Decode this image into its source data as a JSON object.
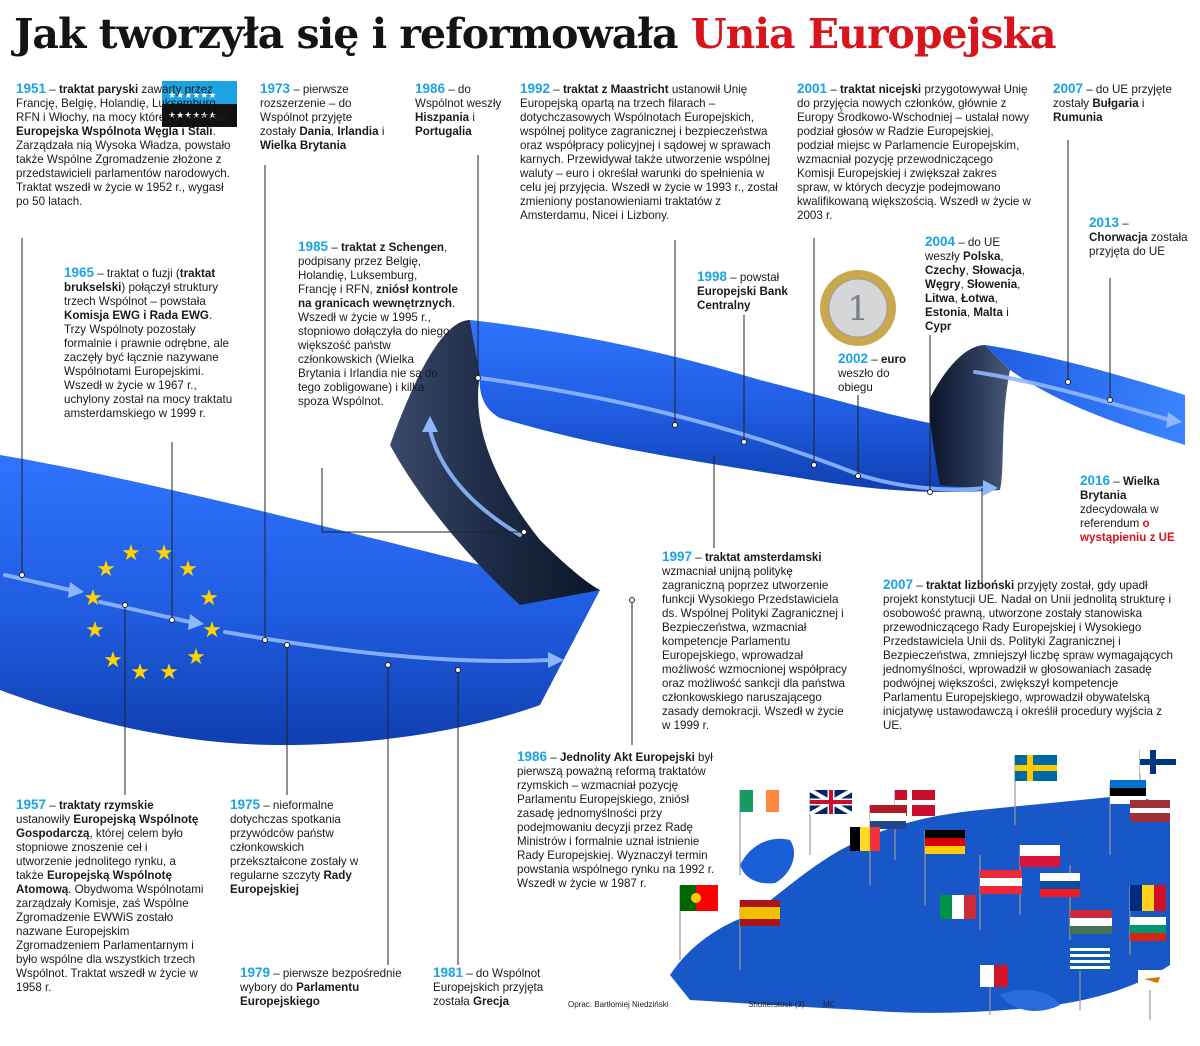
{
  "header": {
    "title_main": "Jak tworzyła się i reformowała",
    "title_accent": "Unia Europejska"
  },
  "events": {
    "e1951": {
      "year": "1951",
      "t1": " – ",
      "b1": "traktat paryski",
      "t2": " zawarty przez Francję, Belgię, Holandię, Luksemburg, RFN i Włochy, na mocy którego powstała ",
      "b2": "Europejska Wspólnota Węgla i Stali",
      "t3": ". Zarządzała nią Wysoka Władza, powstało także Wspólne Zgromadzenie złożone z przedstawicieli parlamentów narodowych. Traktat wszedł w życie w 1952 r., wygasł po 50 latach."
    },
    "e1965": {
      "year": "1965",
      "t1": " – traktat o fuzji (",
      "b1": "traktat brukselski",
      "t2": ") połączył struktury trzech Wspólnot – powstała ",
      "b2": "Komisja EWG i Rada EWG",
      "t3": ". Trzy Wspólnoty pozostały formalnie i prawnie odrębne, ale zaczęły być łącznie nazywane Wspólnotami Europejskimi. Wszedł w życie w 1967 r., uchylony został na mocy traktatu amsterdamskiego w 1999 r."
    },
    "e1973": {
      "year": "1973",
      "t1": " – pierwsze rozszerzenie – do Wspólnot przyjęte zostały ",
      "b1": "Dania",
      "t2": ", ",
      "b2": "Irlandia",
      "t3": " i ",
      "b3": "Wielka Brytania"
    },
    "e1985": {
      "year": "1985",
      "t1": " – ",
      "b1": "traktat z Schengen",
      "t2": ", podpisany przez Belgię, Holandię, Luksemburg, Francję i RFN, ",
      "b2": "zniósł kontrole na granicach wewnętrznych",
      "t3": ". Wszedł w życie w 1995 r., stopniowo dołączyła do niego większość państw członkowskich (Wielka Brytania i Irlandia nie są do tego zobligowane) i kilka spoza Wspólnot."
    },
    "e1986a": {
      "year": "1986",
      "t1": " – do Wspólnot weszły ",
      "b1": "Hiszpania",
      "t2": " i ",
      "b2": "Portugalia"
    },
    "e1992": {
      "year": "1992",
      "t1": " – ",
      "b1": "traktat z Maastricht",
      "t2": " ustanowił Unię Europejską opartą na trzech filarach – dotychczasowych Wspólnotach Europejskich, wspólnej polityce zagranicznej i bezpieczeństwa oraz współpracy policyjnej i sądowej w sprawach karnych. Przewidywał także utworzenie wspólnej waluty – euro i określał warunki do spełnienia w celu jej przyjęcia. Wszedł w życie w 1993 r., został zmieniony postanowieniami traktatów z Amsterdamu, Nicei i Lizbony."
    },
    "e1998": {
      "year": "1998",
      "t1": " – powstał ",
      "b1": "Europejski Bank Centralny"
    },
    "e2001": {
      "year": "2001",
      "t1": " – ",
      "b1": "traktat nicejski",
      "t2": " przygotowywał Unię do przyjęcia nowych członków, głównie z Europy Środkowo-Wschodniej – ustalał nowy podział głosów w Radzie Europejskiej, podział miejsc w Parlamencie Europejskim, wzmacniał pozycję przewodniczącego Komisji Europejskiej i zwiększał zakres spraw, w których decyzje podejmowano kwalifikowaną większością. Wszedł w życie w 2003 r."
    },
    "e2007a": {
      "year": "2007",
      "t1": " – do UE przyjęte zostały ",
      "b1": "Bułgaria",
      "t2": " i ",
      "b2": "Rumunia"
    },
    "e2013": {
      "year": "2013",
      "t1": " – ",
      "b1": "Chorwacja",
      "t2": " została przyjęta do UE"
    },
    "e2004": {
      "year": "2004",
      "t1": " – do UE weszły ",
      "b1": "Polska",
      "t2": ", ",
      "b2": "Czechy",
      "t3": ", ",
      "b3": "Słowacja",
      "t4": ", ",
      "b4": "Węgry",
      "t5": ", ",
      "b5": "Słowenia",
      "t6": ", ",
      "b6": "Litwa",
      "t7": ", ",
      "b7": "Łotwa",
      "t8": ", ",
      "b8": "Estonia",
      "t9": ", ",
      "b9": "Malta",
      "t10": " i ",
      "b10": "Cypr"
    },
    "e2002": {
      "year": "2002",
      "t1": " – ",
      "b1": "euro",
      "t2": " weszło do obiegu"
    },
    "e2016": {
      "year": "2016",
      "t1": " – ",
      "b1": "Wielka Brytania",
      "t2": " zdecydowała w referendum ",
      "r1": "o wystąpieniu z UE"
    },
    "e1997": {
      "year": "1997",
      "t1": " – ",
      "b1": "traktat amsterdamski",
      "t2": " wzmacniał unijną politykę zagraniczną poprzez utworzenie funkcji Wysokiego Przedstawiciela ds. Wspólnej Polityki Zagranicznej i Bezpieczeństwa, wzmacniał kompetencje Parlamentu Europejskiego, wprowadzał możliwość wzmocnionej współpracy oraz możliwość sankcji dla państwa członkowskiego naruszającego zasady demokracji. Wszedł w życie w 1999 r."
    },
    "e2007b": {
      "year": "2007",
      "t1": " – ",
      "b1": "traktat lizboński",
      "t2": " przyjęty został, gdy upadł projekt konstytucji UE. Nadał on Unii jednolitą strukturę i osobowość prawną, utworzone zostały stanowiska przewodniczącego Rady Europejskiej i Wysokiego Przedstawiciela Unii ds. Polityki Zagranicznej i Bezpieczeństwa, zmniejszył liczbę spraw wymagających jednomyślności, wprowadził w głosowaniach zasadę podwójnej większości, zwiększył kompetencje Parlamentu Europejskiego, wprowadził obywatelską inicjatywę ustawodawczą i określił procedury wyjścia z UE."
    },
    "e1957": {
      "year": "1957",
      "t1": " – ",
      "b1": "traktaty rzymskie",
      "t2": " ustanowiły ",
      "b2": "Europejską Wspólnotę Gospodarczą",
      "t3": ", której celem było stopniowe znoszenie ceł i utworzenie jednolitego rynku, a także ",
      "b3": "Europejską Wspólnotę Atomową",
      "t4": ". Obydwoma Wspólnotami zarządzały Komisje, zaś Wspólne Zgromadzenie EWWiS zostało nazwane Europejskim Zgromadzeniem Parlamentarnym i było wspólne dla wszystkich trzech Wspólnot. Traktat wszedł w życie w 1958 r."
    },
    "e1975": {
      "year": "1975",
      "t1": " – nieformalne dotychczas spotkania przywódców państw członkowskich przekształcone zostały w regularne szczyty ",
      "b1": "Rady Europejskiej"
    },
    "e1979": {
      "year": "1979",
      "t1": " – pierwsze bezpośrednie wybory do ",
      "b1": "Parlamentu Europejskiego"
    },
    "e1981": {
      "year": "1981",
      "t1": " – do Wspólnot Europejskich przyjęta została ",
      "b1": "Grecja"
    },
    "e1986b": {
      "year": "1986",
      "t1": " – ",
      "b1": "Jednolity Akt Europejski",
      "t2": " był pierwszą poważną reformą traktatów rzymskich – wzmacniał pozycję Parlamentu Europejskiego, zniósł zasadę jednomyślności przy podejmowaniu decyzji przez Radę Ministrów i formalnie uznał istnienie Rady Europejskiej. Wyznaczył termin powstania wspólnego rynku na 1992 r. Wszedł w życie w 1987 r."
    }
  },
  "credits": {
    "author": "Oprac. Bartłomiej Niedziński",
    "photo": "Shutterstock (3)",
    "initials": "MC"
  },
  "colors": {
    "year": "#1ba3e3",
    "title_accent": "#d8141c",
    "ribbon_blue": "#1f5ce0",
    "ribbon_dark": "#1c2a44",
    "eu_stars": "#ffd200",
    "map_blue": "#1857c8"
  },
  "icons": {
    "coin": "euro-coin-icon",
    "flag": "ecsc-flag-icon",
    "map": "eu-flags-map-icon"
  }
}
